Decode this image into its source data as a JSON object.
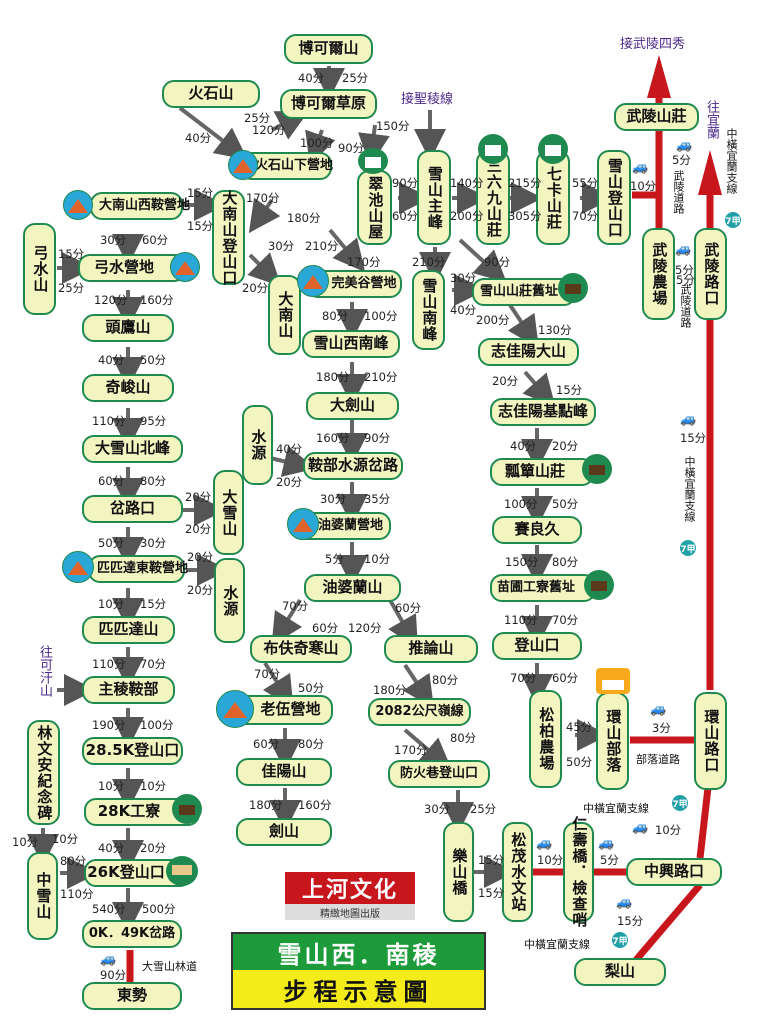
{
  "nodes": {
    "bokeer": "博可爾山",
    "bokeer_grass": "博可爾草原",
    "huoshan": "火石山",
    "huoshan_camp": "火石山下營地",
    "danan_west_camp": "大南山西鞍營地",
    "danan_ridge": "大南山登山口",
    "cuichi": "翠池山屋",
    "xue_main": "雪山主峰",
    "sanliujiu": "三六九山莊",
    "qika": "七卡山莊",
    "xue_trailhead": "雪山登山口",
    "wuling_villa": "武陵山莊",
    "wuling_farm": "武陵農場",
    "wuling_rd": "武陵路口",
    "gongshui_mt": "弓水山",
    "gongshui_camp": "弓水營地",
    "dananshan": "大南山",
    "wanmei_camp": "完美谷營地",
    "xue_south": "雪山南峰",
    "xue_villa_old": "雪山山莊舊址",
    "touying": "頭鷹山",
    "xue_sw": "雪山西南峰",
    "zhijiayang": "志佳陽大山",
    "qijun": "奇峻山",
    "dajian": "大劍山",
    "zhijiayang_base": "志佳陽基點峰",
    "daxue_n": "大雪山北峰",
    "shuiyuan1": "水源",
    "anbu": "鞍部水源岔路",
    "piaozhao": "瓢簞山莊",
    "chalukou": "岔路口",
    "daxueshan": "大雪山",
    "youpolan_camp": "油婆蘭營地",
    "sailiangjiu": "賽良久",
    "pipida_camp": "匹匹達東鞍營地",
    "shuiyuan2": "水源",
    "miaopu": "苗圃工寮舊址",
    "youpolan": "油婆蘭山",
    "pipida": "匹匹達山",
    "bufuqihan": "布伕奇寒山",
    "tuilun": "推論山",
    "trailhead_lower": "登山口",
    "zhuling_anbu": "主稜鞍部",
    "songbai": "松柏農場",
    "huanshan": "環山部落",
    "huanshan_rd": "環山路口",
    "laowu_camp": "老伍營地",
    "pt2082": "2082公尺嶺線",
    "k285": "28.5K登山口",
    "jiayang": "佳陽山",
    "fanghuo": "防火巷登山口",
    "lin_memorial": "林文安紀念碑",
    "k28": "28K工寮",
    "jianshan": "劍山",
    "leshan": "樂山橋",
    "songmao": "松茂水文站",
    "renshou": "仁壽橋．檢查哨",
    "zhongxing": "中興路口",
    "zhongxueshan": "中雪山",
    "k26": "26K登山口",
    "k049": "0K．49K岔路",
    "dongshi": "東勢",
    "lishan": "梨山"
  },
  "times": {
    "t1": "40分",
    "t2": "25分",
    "t3": "25分",
    "t4": "40分",
    "t5": "120分",
    "t6": "100分",
    "t7": "90分",
    "t8": "150分",
    "t9": "15分",
    "t10": "15分",
    "t11": "170分",
    "t12": "180分",
    "t13": "90分",
    "t14": "60分",
    "t15": "140分",
    "t16": "200分",
    "t17": "215分",
    "t18": "305分",
    "t19": "55分",
    "t20": "70分",
    "t21": "10分",
    "t22": "5分",
    "t23": "30分",
    "t24": "60分",
    "t25": "15分",
    "t26": "25分",
    "t27": "30分",
    "t28": "20分",
    "t29": "210分",
    "t30": "170分",
    "t31": "210分",
    "t32": "90分",
    "t33": "30分",
    "t34": "40分",
    "t35": "5分",
    "t36": "120分",
    "t37": "160分",
    "t38": "80分",
    "t39": "100分",
    "t40": "200分",
    "t41": "130分",
    "t42": "40分",
    "t43": "50分",
    "t44": "180分",
    "t45": "210分",
    "t46": "20分",
    "t47": "15分",
    "t48": "110分",
    "t49": "95分",
    "t50": "40分",
    "t51": "160分",
    "t52": "90分",
    "t53": "40分",
    "t54": "20分",
    "t55": "60分",
    "t56": "80分",
    "t57": "20分",
    "t58": "20分",
    "t59": "30分",
    "t60": "35分",
    "t61": "100分",
    "t62": "50分",
    "t63": "50分",
    "t64": "30分",
    "t65": "20分",
    "t66": "5分",
    "t67": "10分",
    "t68": "150分",
    "t69": "80分",
    "t70": "20分",
    "t71": "10分",
    "t72": "15分",
    "t73": "20分",
    "t74": "70分",
    "t75": "60分",
    "t76": "110分",
    "t77": "70分",
    "t78": "60分",
    "t79": "120分",
    "t80": "110分",
    "t81": "70分",
    "t82": "70分",
    "t83": "50分",
    "t84": "180分",
    "t85": "80分",
    "t86": "70分",
    "t87": "60分",
    "t88": "190分",
    "t89": "100分",
    "t90": "60分",
    "t91": "80分",
    "t92": "45分",
    "t93": "50分",
    "t94": "3分",
    "t95": "10分",
    "t96": "10分",
    "t97": "170分",
    "t98": "80分",
    "t99": "180分",
    "t100": "160分",
    "t101": "30分",
    "t102": "25分",
    "t103": "10分",
    "t104": "10分",
    "t105": "40分",
    "t106": "20分",
    "t107": "80分",
    "t108": "110分",
    "t109": "15分",
    "t110": "15分",
    "t111": "10分",
    "t112": "5分",
    "t113": "540分",
    "t114": "500分",
    "t115": "90分",
    "t116": "15分",
    "t117": "15分",
    "t118": "10分",
    "t119": "5分"
  },
  "directions": {
    "wuling_sixiu": "接武陵四秀",
    "shengling": "接聖稜線",
    "to_yilan": "往宜蘭",
    "to_kehan": "往可汗山"
  },
  "roads": {
    "zhongheng_yilan_1": "中橫宜蘭支線",
    "wuling_road_1": "武陵道路",
    "wuling_road_2": "武陵道路",
    "zhongheng_yilan_2": "中橫宜蘭支線",
    "buluo_road": "部落道路",
    "zhongheng_yilan_3": "中橫宜蘭支線",
    "zhongheng_yilan_4": "中橫宜蘭支線",
    "daxue_forest_road": "大雪山林道",
    "route7": "7甲"
  },
  "brand": {
    "name": "上河文化",
    "subtitle": "精緻地圖出版"
  },
  "title": {
    "line1": "雪山西．南稜",
    "line2": "步程示意圖"
  },
  "colors": {
    "node_fill": "#f2f5c0",
    "node_border": "#1f8a4f",
    "road": "#c8161d",
    "title_green": "#1d9a3a",
    "title_yellow": "#f3ec1a"
  }
}
